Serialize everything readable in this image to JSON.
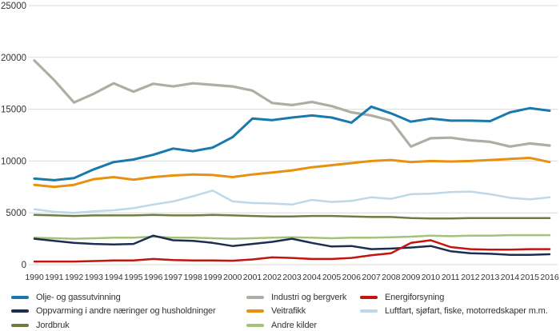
{
  "chart_data": {
    "type": "line",
    "title": "",
    "xlabel": "",
    "ylabel": "",
    "x": [
      1990,
      1991,
      1992,
      1993,
      1994,
      1995,
      1996,
      1997,
      1998,
      1999,
      2000,
      2001,
      2002,
      2003,
      2004,
      2005,
      2006,
      2007,
      2008,
      2009,
      2010,
      2011,
      2012,
      2013,
      2014,
      2015,
      2016
    ],
    "ylim": [
      0,
      25000
    ],
    "y_ticks": [
      0,
      5000,
      10000,
      15000,
      20000,
      25000
    ],
    "y_tick_labels": [
      "0",
      "5000",
      "10000",
      "15000",
      "20000",
      "25000"
    ],
    "grid": "horizontal",
    "legend_position": "bottom",
    "series": [
      {
        "key": "luftfart",
        "name": "Luftfart, sjøfart, fiske, motorredskaper m.m.",
        "color": "#bdd8e9",
        "width": 2.5,
        "values": [
          5350,
          5100,
          5000,
          5150,
          5250,
          5450,
          5800,
          6100,
          6600,
          7150,
          6100,
          5950,
          5900,
          5800,
          6250,
          6050,
          6150,
          6500,
          6350,
          6800,
          6850,
          7000,
          7050,
          6800,
          6450,
          6300,
          6500
        ]
      },
      {
        "key": "andre",
        "name": "Andre kilder",
        "color": "#a4c27a",
        "width": 2.5,
        "values": [
          2600,
          2550,
          2500,
          2550,
          2600,
          2600,
          2700,
          2600,
          2600,
          2550,
          2500,
          2550,
          2600,
          2650,
          2600,
          2550,
          2600,
          2600,
          2650,
          2700,
          2800,
          2750,
          2800,
          2800,
          2850,
          2850,
          2850
        ]
      },
      {
        "key": "oppvarming",
        "name": "Oppvarming i andre næringer og husholdninger",
        "color": "#1d2d50",
        "width": 2.5,
        "values": [
          2500,
          2300,
          2100,
          2000,
          1950,
          2000,
          2800,
          2350,
          2300,
          2100,
          1800,
          2000,
          2200,
          2500,
          2100,
          1750,
          1800,
          1500,
          1550,
          1650,
          1800,
          1300,
          1100,
          1050,
          950,
          950,
          1000
        ]
      },
      {
        "key": "energiforsyning",
        "name": "Energiforsyning",
        "color": "#c3140d",
        "width": 2.5,
        "values": [
          300,
          300,
          300,
          350,
          400,
          400,
          550,
          450,
          400,
          400,
          380,
          500,
          700,
          650,
          550,
          550,
          650,
          900,
          1100,
          2100,
          2350,
          1700,
          1500,
          1450,
          1450,
          1500,
          1500
        ]
      },
      {
        "key": "jordbruk",
        "name": "Jordbruk",
        "color": "#6d7c42",
        "width": 2.5,
        "values": [
          4800,
          4750,
          4700,
          4750,
          4750,
          4750,
          4800,
          4750,
          4750,
          4800,
          4750,
          4700,
          4650,
          4650,
          4700,
          4700,
          4650,
          4600,
          4600,
          4500,
          4450,
          4450,
          4500,
          4500,
          4500,
          4500,
          4500
        ]
      },
      {
        "key": "industri",
        "name": "Industri og bergverk",
        "color": "#b1ada5",
        "width": 3.2,
        "values": [
          19700,
          17800,
          15650,
          16500,
          17500,
          16700,
          17450,
          17200,
          17500,
          17350,
          17200,
          16800,
          15600,
          15400,
          15700,
          15300,
          14700,
          14400,
          13900,
          11400,
          12200,
          12250,
          12000,
          11850,
          11400,
          11700,
          11500
        ]
      },
      {
        "key": "veitrafikk",
        "name": "Veitrafikk",
        "color": "#e89110",
        "width": 3,
        "values": [
          7700,
          7500,
          7700,
          8250,
          8450,
          8200,
          8450,
          8600,
          8700,
          8650,
          8450,
          8700,
          8900,
          9100,
          9400,
          9600,
          9800,
          10000,
          10100,
          9900,
          10000,
          9950,
          10000,
          10100,
          10200,
          10300,
          9900
        ]
      },
      {
        "key": "olje",
        "name": "Olje- og gassutvinning",
        "color": "#1879ad",
        "width": 3,
        "values": [
          8300,
          8150,
          8350,
          9200,
          9900,
          10150,
          10600,
          11200,
          10950,
          11300,
          12300,
          14100,
          13950,
          14200,
          14400,
          14200,
          13700,
          15250,
          14600,
          13800,
          14100,
          13900,
          13900,
          13850,
          14700,
          15100,
          14850
        ]
      }
    ]
  },
  "legend": {
    "columns": [
      {
        "keys": [
          "olje",
          "oppvarming",
          "jordbruk"
        ]
      },
      {
        "keys": [
          "industri",
          "veitrafikk",
          "andre"
        ]
      },
      {
        "keys": [
          "energiforsyning",
          "luftfart"
        ]
      }
    ]
  },
  "colors": {
    "background": "#ffffff",
    "gridline": "#d9d9d9",
    "axis_text": "#333333"
  }
}
